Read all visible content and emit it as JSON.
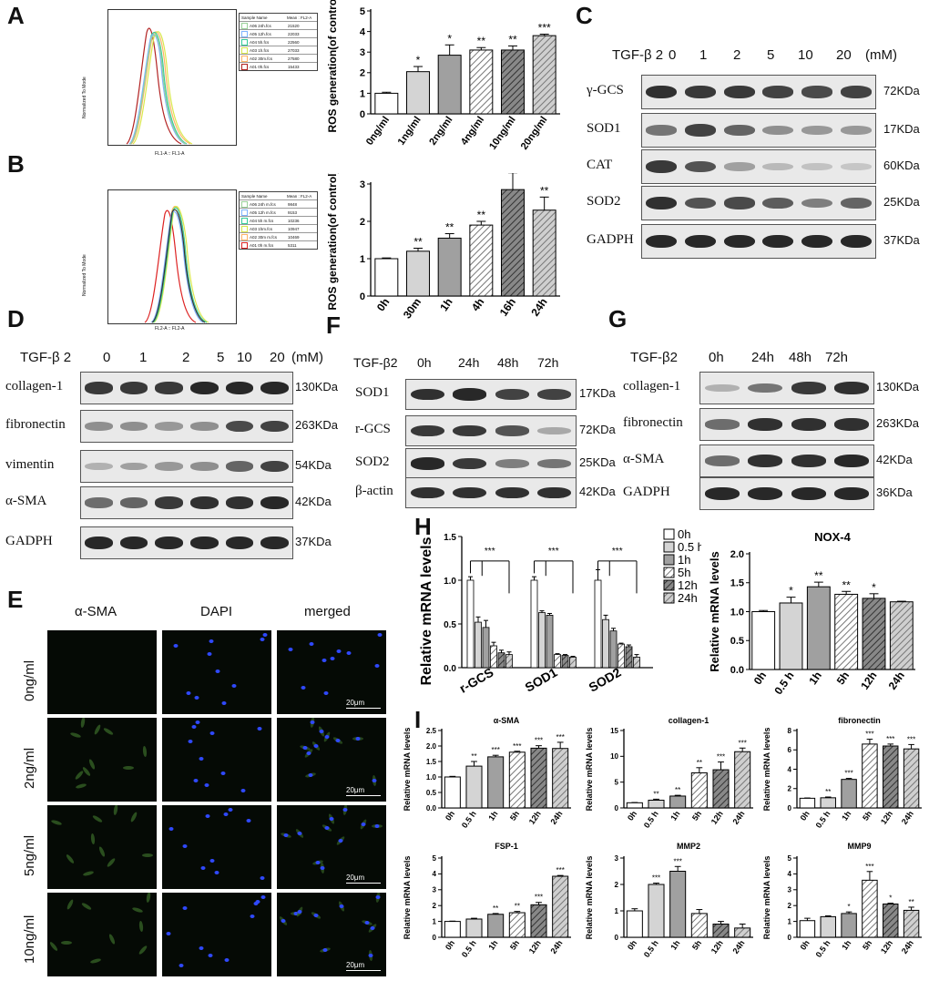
{
  "panel_letters": {
    "A": "A",
    "B": "B",
    "C": "C",
    "D": "D",
    "E": "E",
    "F": "F",
    "G": "G",
    "H": "H",
    "I": "I"
  },
  "flow_A": {
    "ylabel": "Normalized To Mode",
    "xlabel": "FL1-A :: FL1-A",
    "legend_header": [
      "Sample Name",
      "Mean : FL2-A"
    ],
    "legend_rows": [
      {
        "name": "A06 24h.fcs",
        "mean": "21520",
        "color": "#9ad19a"
      },
      {
        "name": "A05 12h.fcs",
        "mean": "22033",
        "color": "#7fb3ff"
      },
      {
        "name": "A04 5h.fcs",
        "mean": "22560",
        "color": "#33cc99"
      },
      {
        "name": "A03 1h.fcs",
        "mean": "27033",
        "color": "#d9e84a"
      },
      {
        "name": "A02 30m.fcs",
        "mean": "27580",
        "color": "#ffb366"
      },
      {
        "name": "A01 0h.fcs",
        "mean": "15433",
        "color": "#b22222"
      }
    ]
  },
  "flow_B": {
    "ylabel": "Normalized To Mode",
    "xlabel": "FL2-A :: FL2-A",
    "legend_header": [
      "Sample Name",
      "Mean : FL2-A"
    ],
    "legend_rows": [
      {
        "name": "A06 24h m.fcs",
        "mean": "9848",
        "color": "#9ad19a"
      },
      {
        "name": "A05 12h m.fcs",
        "mean": "9153",
        "color": "#7fb3ff"
      },
      {
        "name": "A04 5h m.fcs",
        "mean": "10236",
        "color": "#33cc99"
      },
      {
        "name": "A03 1hm.fcs",
        "mean": "10947",
        "color": "#d9e84a"
      },
      {
        "name": "A02 30m m.fcs",
        "mean": "10469",
        "color": "#ffb366"
      },
      {
        "name": "A01 0h m.fcs",
        "mean": "5311",
        "color": "#dd2222"
      }
    ]
  },
  "wb_C": {
    "header_label": "TGF-β 2",
    "doses": [
      "0",
      "1",
      "2",
      "5",
      "10",
      "20"
    ],
    "unit": "(mM)",
    "rows": [
      {
        "label": "γ-GCS",
        "kda": "72KDa"
      },
      {
        "label": "SOD1",
        "kda": "17KDa"
      },
      {
        "label": "CAT",
        "kda": "60KDa"
      },
      {
        "label": "SOD2",
        "kda": "25KDa"
      },
      {
        "label": "GADPH",
        "kda": "37KDa"
      }
    ]
  },
  "wb_D": {
    "header_label": "TGF-β 2",
    "doses": [
      "0",
      "1",
      "2",
      "5",
      "10",
      "20"
    ],
    "unit": "(mM)",
    "rows": [
      {
        "label": "collagen-1",
        "kda": "130KDa"
      },
      {
        "label": "fibronectin",
        "kda": "263KDa"
      },
      {
        "label": "vimentin",
        "kda": "54KDa"
      },
      {
        "label": "α-SMA",
        "kda": "42KDa"
      },
      {
        "label": "GADPH",
        "kda": "37KDa"
      }
    ]
  },
  "wb_F": {
    "header_label": "TGF-β2",
    "times": [
      "0h",
      "24h",
      "48h",
      "72h"
    ],
    "rows": [
      {
        "label": "SOD1",
        "kda": "17KDa"
      },
      {
        "label": "r-GCS",
        "kda": "72KDa"
      },
      {
        "label": "SOD2",
        "kda": "25KDa"
      },
      {
        "label": "β-actin",
        "kda": "42KDa"
      }
    ]
  },
  "wb_G": {
    "header_label": "TGF-β2",
    "times": [
      "0h",
      "24h",
      "48h",
      "72h"
    ],
    "rows": [
      {
        "label": "collagen-1",
        "kda": "130KDa"
      },
      {
        "label": "fibronectin",
        "kda": "263KDa"
      },
      {
        "label": "α-SMA",
        "kda": "42KDa"
      },
      {
        "label": "GADPH",
        "kda": "36KDa"
      }
    ]
  },
  "fluo_E": {
    "columns": [
      "α-SMA",
      "DAPI",
      "merged"
    ],
    "rows": [
      "0ng/ml",
      "2ng/ml",
      "5ng/ml",
      "10ng/ml"
    ],
    "scale": "20μm"
  },
  "chart_data": [
    {
      "id": "A-bar",
      "type": "bar",
      "ylabel": "ROS generation(of control)",
      "categories": [
        "0ng/ml",
        "1ng/ml",
        "2ng/ml",
        "4ng/ml",
        "10ng/ml",
        "20ng/ml"
      ],
      "values": [
        1.0,
        2.05,
        2.85,
        3.1,
        3.1,
        3.8
      ],
      "errors": [
        0.05,
        0.25,
        0.5,
        0.12,
        0.2,
        0.07
      ],
      "sig": [
        "",
        "*",
        "*",
        "**",
        "**",
        "***"
      ],
      "ylim": [
        0,
        5
      ],
      "yticks": [
        0,
        1,
        2,
        3,
        4,
        5
      ],
      "fills": [
        "white",
        "light",
        "gray",
        "hatchlight",
        "hatchdark",
        "hatchmed"
      ]
    },
    {
      "id": "B-bar",
      "type": "bar",
      "ylabel": "ROS generation(of control)",
      "categories": [
        "0h",
        "30m",
        "1h",
        "4h",
        "16h",
        "24h"
      ],
      "values": [
        1.0,
        1.2,
        1.55,
        1.9,
        2.85,
        2.3
      ],
      "errors": [
        0.02,
        0.08,
        0.12,
        0.1,
        0.45,
        0.35
      ],
      "sig": [
        "",
        "**",
        "**",
        "**",
        "***",
        "**"
      ],
      "ylim": [
        0,
        3
      ],
      "yticks": [
        0,
        1,
        2,
        3
      ],
      "fills": [
        "white",
        "light",
        "gray",
        "hatchlight",
        "hatchdark",
        "hatchmed"
      ]
    },
    {
      "id": "H-grouped",
      "type": "bar",
      "ylabel": "Relative mRNA levels",
      "categories": [
        "r-GCS",
        "SOD1",
        "SOD2"
      ],
      "legend": [
        "0h",
        "0.5 h",
        "1h",
        "5h",
        "12h",
        "24h"
      ],
      "series": [
        {
          "name": "0h",
          "values": [
            1.0,
            1.0,
            1.0
          ]
        },
        {
          "name": "0.5 h",
          "values": [
            0.52,
            0.63,
            0.55
          ]
        },
        {
          "name": "1h",
          "values": [
            0.46,
            0.6,
            0.42
          ]
        },
        {
          "name": "5h",
          "values": [
            0.25,
            0.15,
            0.27
          ]
        },
        {
          "name": "12h",
          "values": [
            0.17,
            0.14,
            0.24
          ]
        },
        {
          "name": "24h",
          "values": [
            0.15,
            0.12,
            0.12
          ]
        }
      ],
      "errors": [
        [
          0.04,
          0.04,
          0.12
        ],
        [
          0.06,
          0.02,
          0.05
        ],
        [
          0.08,
          0.02,
          0.03
        ],
        [
          0.04,
          0.01,
          0.01
        ],
        [
          0.03,
          0.01,
          0.02
        ],
        [
          0.03,
          0.01,
          0.03
        ]
      ],
      "sig": [
        "***",
        "***",
        "***"
      ],
      "ylim": [
        0,
        1.5
      ],
      "yticks": [
        0.0,
        0.5,
        1.0,
        1.5
      ]
    },
    {
      "id": "H-nox4",
      "type": "bar",
      "title": "NOX-4",
      "ylabel": "Relative mRNA levels",
      "categories": [
        "0h",
        "0.5 h",
        "1h",
        "5h",
        "12h",
        "24h"
      ],
      "values": [
        1.0,
        1.15,
        1.43,
        1.3,
        1.23,
        1.17
      ],
      "errors": [
        0.02,
        0.1,
        0.08,
        0.05,
        0.08,
        0.01
      ],
      "sig": [
        "",
        "*",
        "**",
        "**",
        "*",
        ""
      ],
      "ylim": [
        0,
        2.0
      ],
      "yticks": [
        0.0,
        0.5,
        1.0,
        1.5,
        2.0
      ]
    },
    {
      "id": "I-asma",
      "type": "bar",
      "title": "α-SMA",
      "ylabel": "Relative mRNA levels",
      "categories": [
        "0h",
        "0.5 h",
        "1h",
        "5h",
        "12h",
        "24h"
      ],
      "values": [
        1.0,
        1.35,
        1.65,
        1.8,
        1.93,
        1.92
      ],
      "errors": [
        0.02,
        0.15,
        0.05,
        0.03,
        0.08,
        0.2
      ],
      "sig": [
        "",
        "**",
        "***",
        "***",
        "***",
        "***"
      ],
      "ylim": [
        0,
        2.5
      ],
      "yticks": [
        0.0,
        0.5,
        1.0,
        1.5,
        2.0,
        2.5
      ]
    },
    {
      "id": "I-collagen",
      "type": "bar",
      "title": "collagen-1",
      "ylabel": "Relative mRNA levels",
      "categories": [
        "0h",
        "0.5 h",
        "1h",
        "5h",
        "12h",
        "24h"
      ],
      "values": [
        1.0,
        1.5,
        2.3,
        6.8,
        7.4,
        10.9
      ],
      "errors": [
        0.05,
        0.2,
        0.15,
        1.0,
        1.5,
        0.7
      ],
      "sig": [
        "",
        "**",
        "**",
        "**",
        "***",
        "***"
      ],
      "ylim": [
        0,
        15
      ],
      "yticks": [
        0,
        5,
        10,
        15
      ]
    },
    {
      "id": "I-fibronectin",
      "type": "bar",
      "title": "fibronectin",
      "ylabel": "Relative mRNA levels",
      "categories": [
        "0h",
        "0.5 h",
        "1h",
        "5h",
        "12h",
        "24h"
      ],
      "values": [
        1.0,
        1.05,
        2.95,
        6.6,
        6.4,
        6.1
      ],
      "errors": [
        0.03,
        0.08,
        0.1,
        0.5,
        0.2,
        0.45
      ],
      "sig": [
        "",
        "**",
        "***",
        "***",
        "***",
        "***"
      ],
      "ylim": [
        0,
        8
      ],
      "yticks": [
        0,
        2,
        4,
        6,
        8
      ]
    },
    {
      "id": "I-fsp1",
      "type": "bar",
      "title": "FSP-1",
      "ylabel": "Relative mRNA levels",
      "categories": [
        "0h",
        "0.5 h",
        "1h",
        "5h",
        "12h",
        "24h"
      ],
      "values": [
        1.0,
        1.15,
        1.45,
        1.55,
        2.05,
        3.85
      ],
      "errors": [
        0.02,
        0.05,
        0.05,
        0.08,
        0.15,
        0.05
      ],
      "sig": [
        "",
        "",
        "**",
        "**",
        "***",
        "***"
      ],
      "ylim": [
        0,
        5
      ],
      "yticks": [
        0,
        1,
        2,
        3,
        4,
        5
      ]
    },
    {
      "id": "I-mmp2",
      "type": "bar",
      "title": "MMP2",
      "ylabel": "Relative mRNA levels",
      "categories": [
        "0h",
        "0.5 h",
        "1h",
        "5h",
        "12h",
        "24h"
      ],
      "values": [
        1.0,
        2.0,
        2.5,
        0.9,
        0.5,
        0.35
      ],
      "errors": [
        0.08,
        0.05,
        0.18,
        0.15,
        0.1,
        0.15
      ],
      "sig": [
        "",
        "***",
        "***",
        "",
        "",
        ""
      ],
      "ylim": [
        0,
        3
      ],
      "yticks": [
        0,
        1,
        2,
        3
      ]
    },
    {
      "id": "I-mmp9",
      "type": "bar",
      "title": "MMP9",
      "ylabel": "Relative mRNA levels",
      "categories": [
        "0h",
        "0.5 h",
        "1h",
        "5h",
        "12h",
        "24h"
      ],
      "values": [
        1.05,
        1.3,
        1.5,
        3.6,
        2.1,
        1.7
      ],
      "errors": [
        0.15,
        0.05,
        0.1,
        0.55,
        0.05,
        0.2
      ],
      "sig": [
        "",
        "",
        "*",
        "***",
        "*",
        "**"
      ],
      "ylim": [
        0,
        5
      ],
      "yticks": [
        0,
        1,
        2,
        3,
        4,
        5
      ]
    }
  ]
}
